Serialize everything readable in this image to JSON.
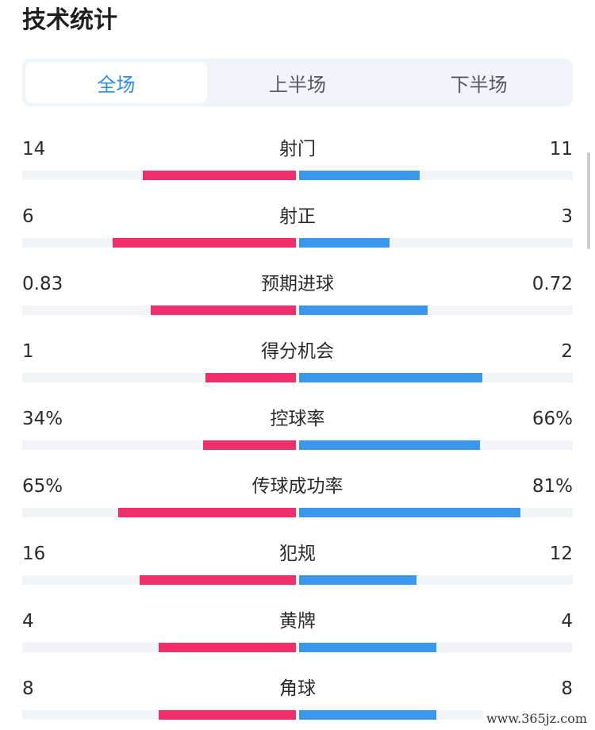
{
  "header": {
    "title": "技术统计"
  },
  "tabs": [
    {
      "label": "全场",
      "active": true
    },
    {
      "label": "上半场",
      "active": false
    },
    {
      "label": "下半场",
      "active": false
    }
  ],
  "colors": {
    "home_bar": "#ee2f6c",
    "away_bar": "#3a97ec",
    "active_tab": "#2e8de8",
    "track": "#f2f4f8"
  },
  "stats": [
    {
      "label": "射门",
      "home": "14",
      "away": "11",
      "home_fill": 0.56,
      "away_fill": 0.44
    },
    {
      "label": "射正",
      "home": "6",
      "away": "3",
      "home_fill": 0.67,
      "away_fill": 0.33
    },
    {
      "label": "预期进球",
      "home": "0.83",
      "away": "0.72",
      "home_fill": 0.53,
      "away_fill": 0.47
    },
    {
      "label": "得分机会",
      "home": "1",
      "away": "2",
      "home_fill": 0.33,
      "away_fill": 0.67
    },
    {
      "label": "控球率",
      "home": "34%",
      "away": "66%",
      "home_fill": 0.34,
      "away_fill": 0.66
    },
    {
      "label": "传球成功率",
      "home": "65%",
      "away": "81%",
      "home_fill": 0.65,
      "away_fill": 0.81
    },
    {
      "label": "犯规",
      "home": "16",
      "away": "12",
      "home_fill": 0.57,
      "away_fill": 0.43
    },
    {
      "label": "黄牌",
      "home": "4",
      "away": "4",
      "home_fill": 0.5,
      "away_fill": 0.5
    },
    {
      "label": "角球",
      "home": "8",
      "away": "8",
      "home_fill": 0.5,
      "away_fill": 0.5
    }
  ],
  "watermark": "www.365jz.com"
}
